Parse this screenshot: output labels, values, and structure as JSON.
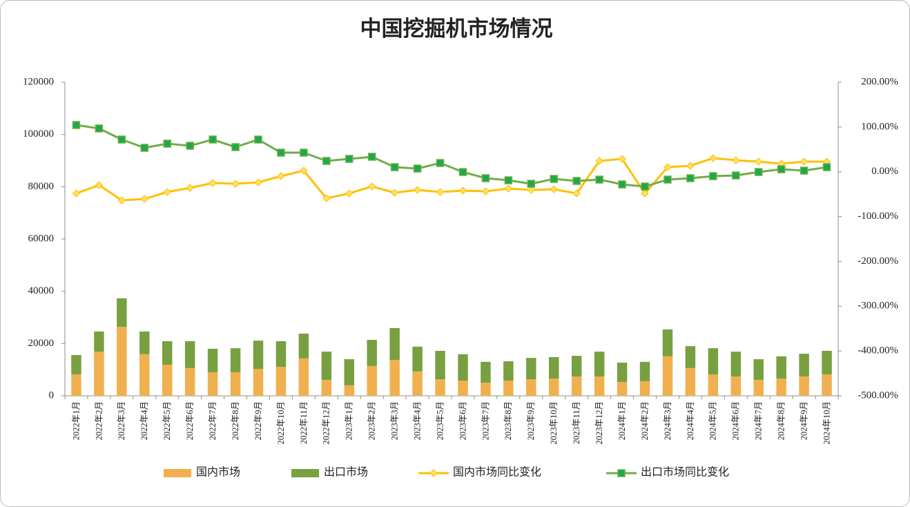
{
  "chart_data": {
    "type": "combo",
    "title": "中国挖掘机市场情况",
    "categories": [
      "2022年1月",
      "2022年2月",
      "2022年3月",
      "2022年4月",
      "2022年5月",
      "2022年6月",
      "2022年7月",
      "2022年8月",
      "2022年9月",
      "2022年10月",
      "2022年11月",
      "2022年12月",
      "2023年1月",
      "2023年2月",
      "2023年3月",
      "2023年4月",
      "2023年5月",
      "2023年6月",
      "2023年7月",
      "2023年8月",
      "2023年9月",
      "2023年10月",
      "2023年11月",
      "2023年12月",
      "2024年1月",
      "2024年2月",
      "2024年3月",
      "2024年4月",
      "2024年5月",
      "2024年6月",
      "2024年7月",
      "2024年8月",
      "2024年9月",
      "2024年10月"
    ],
    "ylim": [
      0,
      120000
    ],
    "yticks": [
      0,
      20000,
      40000,
      60000,
      80000,
      100000,
      120000
    ],
    "y2lim": [
      -500,
      200
    ],
    "y2ticks": [
      {
        "value": -500,
        "label": "-500.00%"
      },
      {
        "value": -400,
        "label": "-400.00%"
      },
      {
        "value": -300,
        "label": "-300.00%"
      },
      {
        "value": -200,
        "label": "-200.00%"
      },
      {
        "value": -100,
        "label": "-100.00%"
      },
      {
        "value": 0,
        "label": "0.00%"
      },
      {
        "value": 100,
        "label": "100.00%"
      },
      {
        "value": 200,
        "label": "200.00%"
      }
    ],
    "grid": false,
    "legend": "bottom",
    "series": [
      {
        "name": "国内市场",
        "type": "bar",
        "color": "#f0b050",
        "values": [
          8200,
          16900,
          26400,
          15900,
          11900,
          10600,
          9000,
          9000,
          10300,
          11100,
          14300,
          6100,
          4000,
          11400,
          13700,
          9300,
          6300,
          5800,
          5000,
          5800,
          6300,
          6600,
          7400,
          7400,
          5300,
          5600,
          15100,
          10600,
          8200,
          7400,
          6100,
          6600,
          7400,
          8200
        ]
      },
      {
        "name": "出口市场",
        "type": "bar",
        "color": "#78a040",
        "values": [
          7400,
          7700,
          10900,
          8700,
          9000,
          10300,
          9000,
          9200,
          10800,
          9800,
          9500,
          10800,
          10000,
          10000,
          12200,
          9500,
          10900,
          10100,
          8000,
          7400,
          8200,
          8200,
          7900,
          9500,
          7400,
          7400,
          10300,
          8400,
          10000,
          9500,
          7900,
          8500,
          8700,
          9000
        ]
      },
      {
        "name": "国内市场同比变化",
        "type": "line",
        "axis": "y2",
        "color": "#ffc000",
        "marker": "diamond",
        "marker_color": "#ffe066",
        "values": [
          -48.3,
          -29.7,
          -63.7,
          -60.6,
          -45.2,
          -35.9,
          -25.1,
          -26.7,
          -23.6,
          -9.7,
          2.6,
          -59.1,
          -48.3,
          -32.8,
          -46.7,
          -40.6,
          -45.2,
          -42.1,
          -43.6,
          -37.5,
          -40.6,
          -39.0,
          -48.3,
          24.2,
          28.8,
          -48.3,
          10.3,
          13.4,
          30.4,
          25.8,
          22.7,
          18.1,
          22.7,
          22.7
        ]
      },
      {
        "name": "出口市场同比变化",
        "type": "line",
        "axis": "y2",
        "color": "#70ad47",
        "marker": "square",
        "marker_color": "#1fa84a",
        "values": [
          104.4,
          96.7,
          72.0,
          53.5,
          62.8,
          58.1,
          72.0,
          55.1,
          72.0,
          42.7,
          42.7,
          24.2,
          28.8,
          33.5,
          10.3,
          7.3,
          19.6,
          -0.5,
          -14.3,
          -19.0,
          -26.7,
          -15.9,
          -20.5,
          -17.4,
          -28.2,
          -32.8,
          -17.4,
          -14.3,
          -9.7,
          -8.2,
          -0.5,
          5.7,
          2.6,
          10.3
        ]
      }
    ]
  }
}
